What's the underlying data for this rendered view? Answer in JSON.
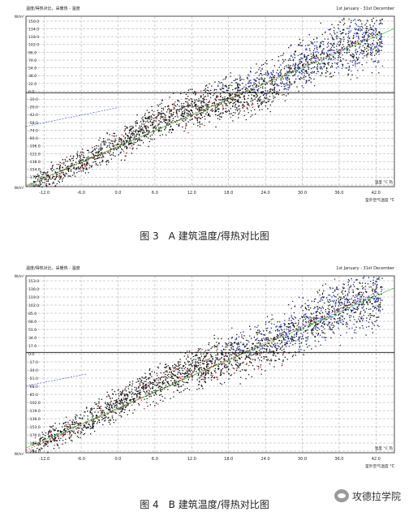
{
  "figures": [
    {
      "caption": "图 3　A 建筑温度/得热对比图",
      "chart_header_left": "温度/得热对比，采暖热 - 温度",
      "chart_header_right": "1st January - 31st December",
      "y_unit_label": "W/m²",
      "x_axis_label": "室外空气温度 °C",
      "y_tick_labels": [
        "150.0",
        "134.0",
        "118.0",
        "102.0",
        "86.0",
        "70.0",
        "54.0",
        "38.0",
        "22.0",
        "6.0",
        "-10.0",
        "-26.0",
        "-42.0",
        "-58.0",
        "-74.0",
        "-90.0",
        "-106.0",
        "-122.0",
        "-138.0",
        "-154.0",
        "-170.0",
        "-186.0"
      ],
      "x_tick_labels": [
        "-12.0",
        "-6.0",
        "0.0",
        "6.0",
        "12.0",
        "18.0",
        "24.0",
        "30.0",
        "36.0",
        "42.0"
      ],
      "legend_hint": "温度 °C 热",
      "chart_data": {
        "type": "scatter",
        "title": "温度/得热对比，采暖热 - 温度",
        "xlabel": "室外空气温度 °C",
        "ylabel": "W/m²",
        "xlim": [
          -15,
          45
        ],
        "ylim": [
          -190,
          155
        ],
        "grid": true,
        "series": [
          {
            "name": "",
            "color": "#111111",
            "trend": [
              [
                -14,
                -182
              ],
              [
                -6,
                -140
              ],
              [
                0,
                -100
              ],
              [
                6,
                -60
              ],
              [
                12,
                -30
              ],
              [
                18,
                -12
              ],
              [
                24,
                12
              ],
              [
                30,
                58
              ],
              [
                36,
                92
              ],
              [
                42,
                112
              ]
            ],
            "spread": 13
          }
        ],
        "overlay_points_colors": [
          "#1a2fbf",
          "#c81e1e"
        ],
        "reference_lines": [
          {
            "name": "",
            "color": "#3344cc",
            "style": "dashed",
            "points": [
              [
                -15,
                -68
              ],
              [
                0,
                -30
              ]
            ]
          },
          {
            "name": "",
            "color": "#cc2222",
            "style": "dashed",
            "points": [
              [
                -15,
                -190
              ],
              [
                42,
                118
              ]
            ]
          },
          {
            "name": "",
            "color": "#22aa22",
            "style": "solid",
            "points": [
              [
                -15,
                -188
              ],
              [
                45,
                130
              ]
            ]
          },
          {
            "name": "",
            "color": "#111111",
            "style": "solid",
            "points": [
              [
                -15,
                0
              ],
              [
                45,
                0
              ]
            ]
          }
        ]
      }
    },
    {
      "caption": "图 4　B 建筑温度/得热对比图",
      "chart_header_left": "温度/得热对比，采暖热 - 温度",
      "chart_header_right": "1st January - 31st December",
      "y_unit_label": "W/m²",
      "x_axis_label": "室外空气温度 °C",
      "y_tick_labels": [
        "153.0",
        "136.0",
        "119.0",
        "102.0",
        "85.0",
        "68.0",
        "51.0",
        "34.0",
        "17.0",
        "0.0",
        "-17.0",
        "-34.0",
        "-51.0",
        "-68.0",
        "-85.0",
        "-102.0",
        "-119.0",
        "-136.0",
        "-153.0",
        "-170.0",
        "-187.0",
        "-204.0"
      ],
      "x_tick_labels": [
        "-12.0",
        "-6.0",
        "0.0",
        "6.0",
        "12.0",
        "18.0",
        "24.0",
        "30.0",
        "36.0",
        "42.0"
      ],
      "legend_hint": "温度 °C 热",
      "chart_data": {
        "type": "scatter",
        "title": "温度/得热对比，采暖热 - 温度",
        "xlabel": "室外空气温度 °C",
        "ylabel": "W/m²",
        "xlim": [
          -15,
          45
        ],
        "ylim": [
          -210,
          160
        ],
        "grid": true,
        "series": [
          {
            "name": "",
            "color": "#111111",
            "trend": [
              [
                -14,
                -195
              ],
              [
                -6,
                -150
              ],
              [
                0,
                -105
              ],
              [
                6,
                -65
              ],
              [
                12,
                -35
              ],
              [
                18,
                -12
              ],
              [
                24,
                15
              ],
              [
                30,
                55
              ],
              [
                36,
                95
              ],
              [
                42,
                118
              ]
            ],
            "spread": 14
          }
        ],
        "overlay_points_colors": [
          "#1a2fbf",
          "#c81e1e"
        ],
        "reference_lines": [
          {
            "name": "",
            "color": "#3344cc",
            "style": "dashed",
            "points": [
              [
                -15,
                -70
              ],
              [
                -5,
                -45
              ]
            ]
          },
          {
            "name": "",
            "color": "#cc2222",
            "style": "dashed",
            "points": [
              [
                -15,
                -205
              ],
              [
                42,
                125
              ]
            ]
          },
          {
            "name": "",
            "color": "#22aa22",
            "style": "solid",
            "points": [
              [
                -15,
                -200
              ],
              [
                45,
                135
              ]
            ]
          },
          {
            "name": "",
            "color": "#111111",
            "style": "solid",
            "points": [
              [
                -15,
                0
              ],
              [
                45,
                0
              ]
            ]
          }
        ]
      }
    }
  ],
  "watermark": {
    "icon": "wechat-icon",
    "text": "攻德拉学院"
  }
}
